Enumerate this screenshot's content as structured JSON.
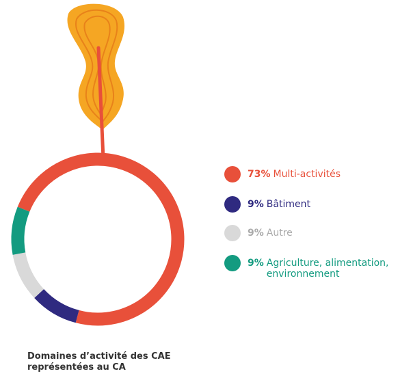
{
  "chart_data": {
    "type": "pie",
    "donut": true,
    "title": "Domaines d’activité des CAE représentées au CA",
    "series": [
      {
        "name": "Multi-activités",
        "color": "#e8503a",
        "values": [
          73
        ],
        "value_labels": [
          "73%"
        ]
      },
      {
        "name": "Bâtiment",
        "color": "#2f2a80",
        "values": [
          9
        ],
        "value_labels": [
          "9%"
        ]
      },
      {
        "name": "Autre",
        "color": "#d9d9d9",
        "values": [
          9
        ],
        "value_labels": [
          "9%"
        ]
      },
      {
        "name": "Agriculture, alimentation, environnement",
        "color": "#139b80",
        "values": [
          9
        ],
        "value_labels": [
          "9%"
        ]
      }
    ]
  }
}
